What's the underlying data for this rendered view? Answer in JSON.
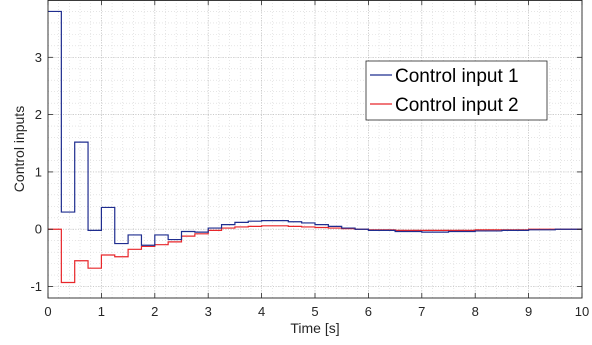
{
  "chart_data": {
    "type": "line",
    "step": true,
    "title": "",
    "xlabel": "Time [s]",
    "ylabel": "Control inputs",
    "xlim": [
      0,
      10
    ],
    "ylim": [
      -1.2,
      4.0
    ],
    "xticks": [
      0,
      1,
      2,
      3,
      4,
      5,
      6,
      7,
      8,
      9,
      10
    ],
    "yticks": [
      -1,
      0,
      1,
      2,
      3
    ],
    "grid": {
      "major": true,
      "minor": true
    },
    "legend_position": "top-right",
    "series": [
      {
        "name": "Control input 1",
        "color": "#1f2d8f",
        "x": [
          0,
          0.25,
          0.5,
          0.75,
          1.0,
          1.25,
          1.5,
          1.75,
          2.0,
          2.25,
          2.5,
          2.75,
          3.0,
          3.25,
          3.5,
          3.75,
          4.0,
          4.25,
          4.5,
          4.75,
          5.0,
          5.25,
          5.5,
          5.75,
          6.0,
          6.5,
          7.0,
          7.5,
          8.0,
          8.5,
          9.0,
          9.5,
          10.0
        ],
        "y": [
          3.8,
          0.3,
          1.52,
          -0.02,
          0.38,
          -0.25,
          -0.1,
          -0.28,
          -0.1,
          -0.18,
          -0.04,
          -0.05,
          0.02,
          0.08,
          0.12,
          0.14,
          0.15,
          0.15,
          0.13,
          0.11,
          0.08,
          0.05,
          0.02,
          0.0,
          -0.02,
          -0.04,
          -0.05,
          -0.04,
          -0.03,
          -0.02,
          -0.01,
          0.0,
          0.0
        ]
      },
      {
        "name": "Control input 2",
        "color": "#e8262a",
        "x": [
          0,
          0.25,
          0.5,
          0.75,
          1.0,
          1.25,
          1.5,
          1.75,
          2.0,
          2.25,
          2.5,
          2.75,
          3.0,
          3.25,
          3.5,
          3.75,
          4.0,
          4.25,
          4.5,
          4.75,
          5.0,
          5.25,
          5.5,
          5.75,
          6.0,
          6.5,
          7.0,
          7.5,
          8.0,
          8.5,
          9.0,
          9.5,
          10.0
        ],
        "y": [
          0.0,
          -0.93,
          -0.55,
          -0.68,
          -0.45,
          -0.48,
          -0.35,
          -0.3,
          -0.27,
          -0.22,
          -0.12,
          -0.08,
          -0.02,
          0.02,
          0.04,
          0.05,
          0.06,
          0.06,
          0.05,
          0.04,
          0.03,
          0.02,
          0.01,
          0.0,
          -0.01,
          -0.02,
          -0.02,
          -0.02,
          -0.01,
          -0.01,
          0.0,
          0.0,
          0.0
        ]
      }
    ]
  }
}
